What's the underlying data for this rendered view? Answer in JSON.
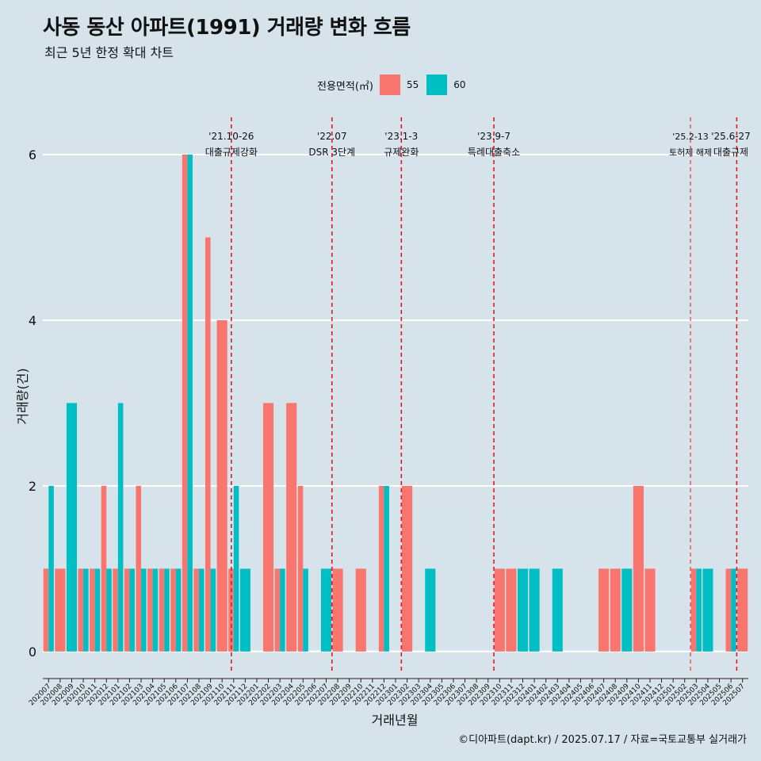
{
  "title": "사동 동산 아파트(1991) 거래량 변화 흐름",
  "subtitle": "최근 5년 한정 확대 차트",
  "caption": "©디아파트(dapt.kr) / 2025.07.17 / 자료=국토교통부 실거래가",
  "legend": {
    "title": "전용면적(㎡)",
    "items": [
      {
        "label": "55",
        "color": "#f8766d"
      },
      {
        "label": "60",
        "color": "#00bfc4"
      }
    ]
  },
  "chart_data": {
    "type": "bar",
    "xlabel": "거래년월",
    "ylabel": "거래량(건)",
    "ylim": [
      -0.25,
      6.45
    ],
    "yticks": [
      0,
      2,
      4,
      6
    ],
    "categories": [
      "202007",
      "202008",
      "202009",
      "202010",
      "202011",
      "202012",
      "202101",
      "202102",
      "202103",
      "202104",
      "202105",
      "202106",
      "202107",
      "202108",
      "202109",
      "202110",
      "202111",
      "202112",
      "202201",
      "202202",
      "202203",
      "202204",
      "202205",
      "202206",
      "202207",
      "202208",
      "202209",
      "202210",
      "202211",
      "202212",
      "202301",
      "202302",
      "202303",
      "202304",
      "202305",
      "202306",
      "202307",
      "202308",
      "202309",
      "202310",
      "202311",
      "202312",
      "202401",
      "202402",
      "202403",
      "202404",
      "202405",
      "202406",
      "202407",
      "202408",
      "202409",
      "202410",
      "202411",
      "202412",
      "202501",
      "202502",
      "202503",
      "202504",
      "202505",
      "202506",
      "202507"
    ],
    "series": [
      {
        "name": "55",
        "color": "#f8766d",
        "values": [
          1,
          1,
          0,
          1,
          1,
          2,
          1,
          1,
          2,
          1,
          1,
          1,
          6,
          1,
          5,
          4,
          1,
          0,
          0,
          3,
          1,
          3,
          2,
          0,
          0,
          1,
          0,
          1,
          0,
          2,
          0,
          2,
          0,
          0,
          0,
          0,
          0,
          0,
          0,
          1,
          1,
          0,
          0,
          0,
          0,
          0,
          0,
          0,
          1,
          1,
          0,
          2,
          1,
          0,
          0,
          0,
          1,
          0,
          0,
          1,
          1
        ]
      },
      {
        "name": "60",
        "color": "#00bfc4",
        "values": [
          2,
          0,
          3,
          1,
          1,
          1,
          3,
          1,
          1,
          1,
          1,
          1,
          6,
          1,
          1,
          0,
          2,
          1,
          0,
          0,
          1,
          0,
          1,
          0,
          1,
          0,
          0,
          0,
          0,
          2,
          0,
          0,
          0,
          1,
          0,
          0,
          0,
          0,
          0,
          0,
          0,
          1,
          1,
          0,
          1,
          0,
          0,
          0,
          0,
          0,
          1,
          0,
          0,
          0,
          0,
          0,
          1,
          1,
          0,
          1,
          0
        ]
      }
    ],
    "annotations": [
      {
        "date": "'21.10-26",
        "label": "대출규제강화",
        "x_index": 15.8,
        "small": false
      },
      {
        "date": "'22.07",
        "label": "DSR 3단계",
        "x_index": 24.5,
        "small": false
      },
      {
        "date": "'23.1-3",
        "label": "규제완화",
        "x_index": 30.5,
        "small": false
      },
      {
        "date": "'23.9-7",
        "label": "특례대출축소",
        "x_index": 38.5,
        "small": false
      },
      {
        "date": "'25.2-13",
        "label": "토허제 해제",
        "x_index": 55.5,
        "small": true
      },
      {
        "date": "'25.6-27",
        "label": "대출규제",
        "x_index": 59.5,
        "small": false
      }
    ]
  }
}
